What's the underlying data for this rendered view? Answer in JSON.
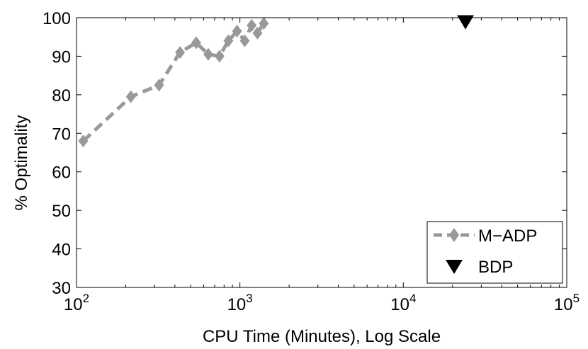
{
  "chart_data": {
    "type": "line",
    "title": "",
    "xlabel": "CPU Time (Minutes), Log Scale",
    "ylabel": "% Optimality",
    "xscale": "log",
    "xlim": [
      100,
      100000
    ],
    "ylim": [
      30,
      100
    ],
    "x_ticks": [
      {
        "value": 100,
        "base": "10",
        "exp": "2"
      },
      {
        "value": 1000,
        "base": "10",
        "exp": "3"
      },
      {
        "value": 10000,
        "base": "10",
        "exp": "4"
      },
      {
        "value": 100000,
        "base": "10",
        "exp": "5"
      }
    ],
    "y_ticks": [
      {
        "value": 30,
        "label": "30"
      },
      {
        "value": 40,
        "label": "40"
      },
      {
        "value": 50,
        "label": "50"
      },
      {
        "value": 60,
        "label": "60"
      },
      {
        "value": 70,
        "label": "70"
      },
      {
        "value": 80,
        "label": "80"
      },
      {
        "value": 90,
        "label": "90"
      },
      {
        "value": 100,
        "label": "100"
      }
    ],
    "grid": false,
    "legend_position": "bottom-right",
    "series": [
      {
        "name": "M−ADP",
        "style": "dashed-line-diamond",
        "color": "#999999",
        "points": [
          {
            "x": 110,
            "y": 68
          },
          {
            "x": 215,
            "y": 79.5
          },
          {
            "x": 320,
            "y": 82.5
          },
          {
            "x": 430,
            "y": 91
          },
          {
            "x": 540,
            "y": 93.5
          },
          {
            "x": 640,
            "y": 90.5
          },
          {
            "x": 750,
            "y": 90
          },
          {
            "x": 850,
            "y": 94
          },
          {
            "x": 960,
            "y": 96.5
          },
          {
            "x": 1070,
            "y": 94
          },
          {
            "x": 1180,
            "y": 98
          },
          {
            "x": 1280,
            "y": 96
          },
          {
            "x": 1400,
            "y": 98.5
          }
        ]
      },
      {
        "name": "BDP",
        "style": "marker-triangle-down",
        "color": "#000000",
        "points": [
          {
            "x": 24000,
            "y": 99
          }
        ]
      }
    ]
  }
}
